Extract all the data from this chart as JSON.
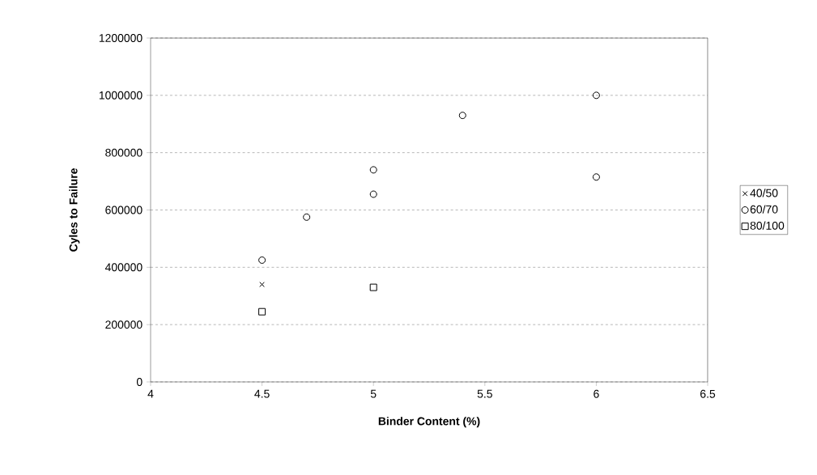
{
  "chart_data": {
    "type": "scatter",
    "xlabel": "Binder Content (%)",
    "ylabel": "Cyles to Failure",
    "xlim": [
      4,
      6.5
    ],
    "xticks": [
      4,
      4.5,
      5,
      5.5,
      6,
      6.5
    ],
    "ylim": [
      0,
      1200000
    ],
    "yticks": [
      0,
      200000,
      400000,
      600000,
      800000,
      1000000,
      1200000
    ],
    "grid": "y",
    "legend": "right",
    "series": [
      {
        "name": "40/50",
        "color": "#000000",
        "marker": "cross",
        "x": [
          4.5
        ],
        "values": [
          340000
        ]
      },
      {
        "name": "60/70",
        "color": "#000000",
        "marker": "circle",
        "x": [
          4.5,
          4.7,
          5.0,
          5.0,
          5.4,
          6.0,
          6.0
        ],
        "values": [
          425000,
          575000,
          740000,
          655000,
          930000,
          1000000,
          715000
        ]
      },
      {
        "name": "80/100",
        "color": "#000000",
        "marker": "square",
        "x": [
          4.5,
          5.0
        ],
        "values": [
          245000,
          330000
        ]
      }
    ]
  }
}
